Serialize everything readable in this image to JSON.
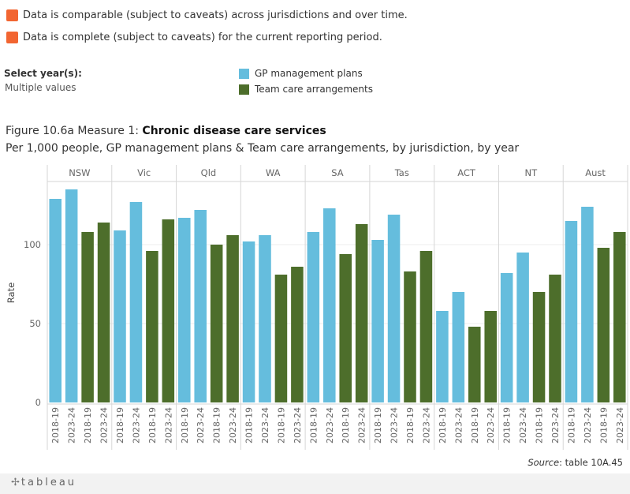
{
  "caveats": [
    {
      "text": "Data is comparable (subject to caveats) across jurisdictions and over time.",
      "color": "#f26531"
    },
    {
      "text": "Data is complete (subject to caveats) for the current reporting period.",
      "color": "#f26531"
    }
  ],
  "filter": {
    "label": "Select year(s):",
    "value": "Multiple values"
  },
  "legend": [
    {
      "label": "GP management plans",
      "color": "#65bddd"
    },
    {
      "label": "Team care arrangements",
      "color": "#4d6e2b"
    }
  ],
  "title": {
    "prefix": "Figure 10.6a Measure 1: ",
    "bold": "Chronic disease care services"
  },
  "subtitle": "Per 1,000 people, GP management plans & Team care arrangements, by jurisdiction, by year",
  "source": {
    "label": "Source",
    "text": ": table 10A.45"
  },
  "footer": {
    "logo": "tableau",
    "logo_icon": "tableau-plus-icon"
  },
  "chart_data": {
    "type": "bar",
    "ylabel": "Rate",
    "ylim": [
      0,
      140
    ],
    "yticks": [
      0,
      50,
      100
    ],
    "grid": true,
    "panels": [
      "NSW",
      "Vic",
      "Qld",
      "WA",
      "SA",
      "Tas",
      "ACT",
      "NT",
      "Aust"
    ],
    "years": [
      "2018-19",
      "2023-24"
    ],
    "series": [
      {
        "name": "GP management plans",
        "color": "#65bddd",
        "values": [
          [
            129,
            135
          ],
          [
            109,
            127
          ],
          [
            117,
            122
          ],
          [
            102,
            106
          ],
          [
            108,
            123
          ],
          [
            103,
            119
          ],
          [
            58,
            70
          ],
          [
            82,
            95
          ],
          [
            115,
            124
          ]
        ]
      },
      {
        "name": "Team care arrangements",
        "color": "#4d6e2b",
        "values": [
          [
            108,
            114
          ],
          [
            96,
            116
          ],
          [
            100,
            106
          ],
          [
            81,
            86
          ],
          [
            94,
            113
          ],
          [
            83,
            96
          ],
          [
            48,
            58
          ],
          [
            70,
            81
          ],
          [
            98,
            108
          ]
        ]
      }
    ]
  }
}
